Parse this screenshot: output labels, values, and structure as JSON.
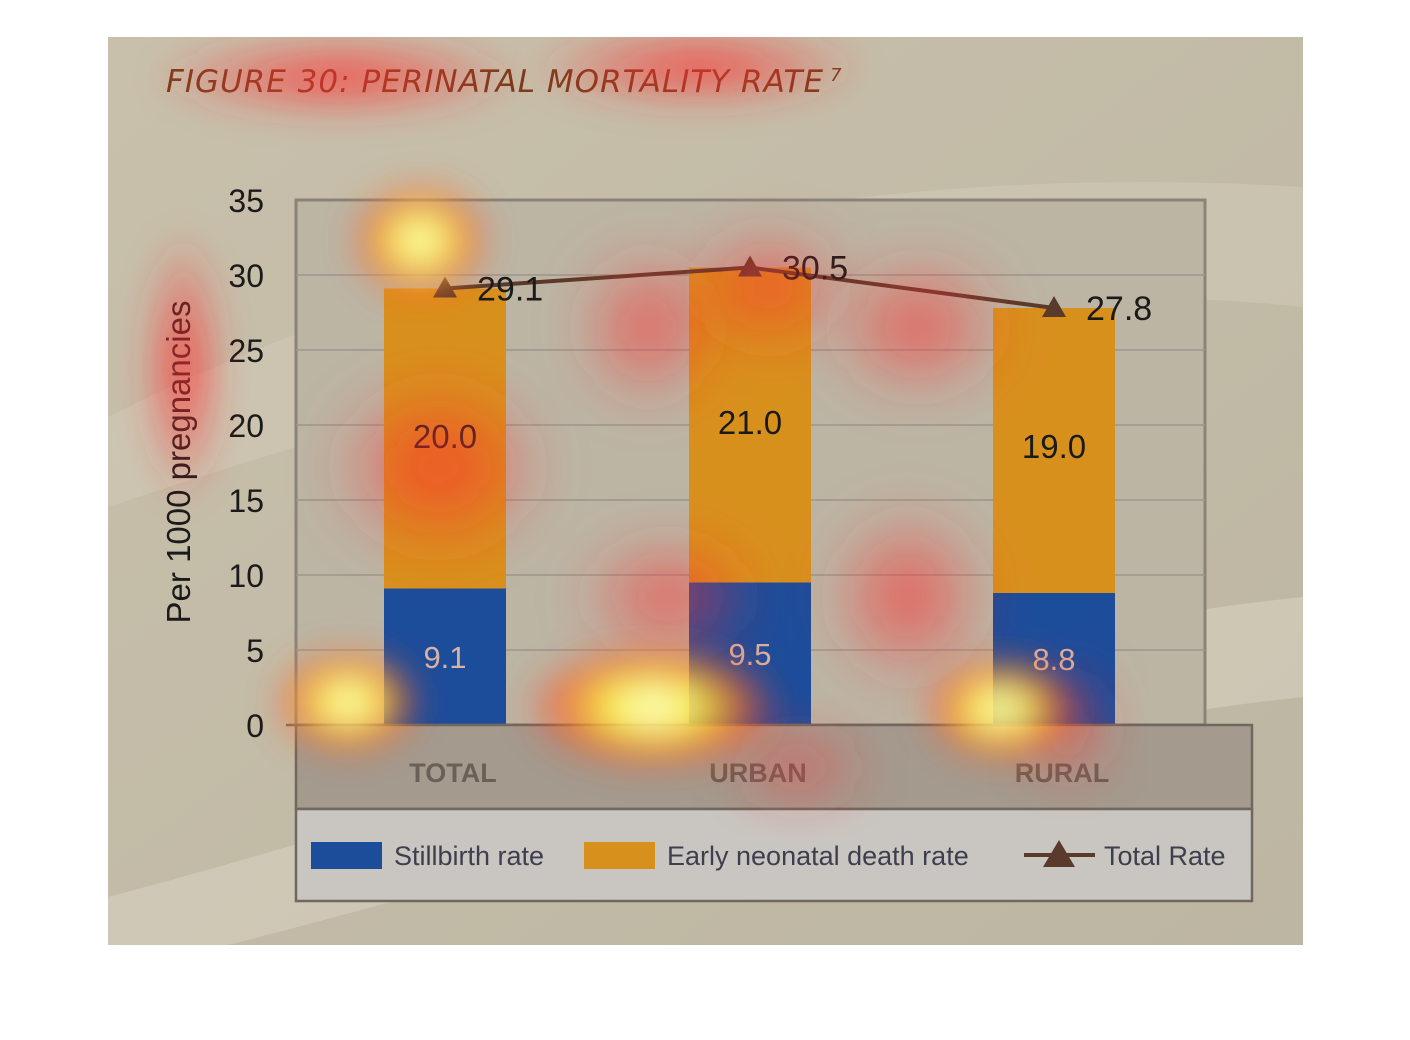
{
  "figure": {
    "title": "FIGURE 30: PERINATAL MORTALITY RATE",
    "title_superscript": "7"
  },
  "chart_data": {
    "type": "bar",
    "stacked": true,
    "categories": [
      "TOTAL",
      "URBAN",
      "RURAL"
    ],
    "series": [
      {
        "name": "Stillbirth rate",
        "type": "bar",
        "values": [
          9.1,
          9.5,
          8.8
        ],
        "color": "#1c4d9b"
      },
      {
        "name": "Early neonatal death rate",
        "type": "bar",
        "values": [
          20.0,
          21.0,
          19.0
        ],
        "color": "#d8901d"
      },
      {
        "name": "Total Rate",
        "type": "line",
        "marker": "triangle",
        "values": [
          29.1,
          30.5,
          27.8
        ],
        "color": "#5a3a2a"
      }
    ],
    "data_labels": {
      "Stillbirth rate": [
        "9.1",
        "9.5",
        "8.8"
      ],
      "Early neonatal death rate": [
        "20.0",
        "21.0",
        "19.0"
      ],
      "Total Rate": [
        "29.1",
        "30.5",
        "27.8"
      ]
    },
    "title": "",
    "xlabel": "",
    "ylabel": "Per 1000 pregnancies",
    "ylim": [
      0,
      35
    ],
    "yticks": [
      0,
      5,
      10,
      15,
      20,
      25,
      30,
      35
    ],
    "grid": true,
    "legend_position": "bottom"
  },
  "colors": {
    "panel_background": "#c3bba6",
    "plot_background": "#bcb5a4",
    "category_band": "#a49a8e",
    "legend_background": "#c9c6c1",
    "title_color": "#7a3b1c",
    "axis_text": "#1a1a1a"
  }
}
